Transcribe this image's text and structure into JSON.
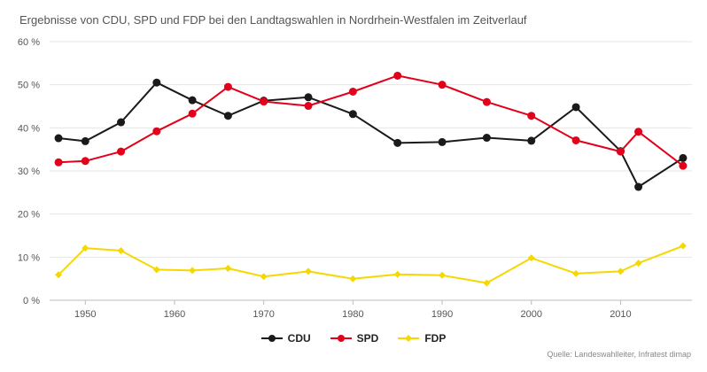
{
  "title": "Ergebnisse von CDU, SPD und FDP bei den Landtagswahlen in Nordrhein-Westfalen im Zeitverlauf",
  "source": "Quelle: Landeswahlleiter, Infratest dimap",
  "chart_data": {
    "type": "line",
    "title": "Ergebnisse von CDU, SPD und FDP bei den Landtagswahlen in Nordrhein-Westfalen im Zeitverlauf",
    "xlabel": "",
    "ylabel": "",
    "x": [
      1947,
      1950,
      1954,
      1958,
      1962,
      1966,
      1970,
      1975,
      1980,
      1985,
      1990,
      1995,
      2000,
      2005,
      2010,
      2012,
      2017
    ],
    "xlim": [
      1946,
      2018
    ],
    "ylim": [
      0,
      60
    ],
    "x_ticks": [
      "1950",
      "1960",
      "1970",
      "1980",
      "1990",
      "2000",
      "2010"
    ],
    "y_ticks": [
      "0 %",
      "10 %",
      "20 %",
      "30 %",
      "40 %",
      "50 %",
      "60 %"
    ],
    "grid": true,
    "legend_position": "bottom",
    "series": [
      {
        "name": "CDU",
        "color": "#1a1a1a",
        "marker": "circle",
        "values": [
          37.6,
          36.9,
          41.3,
          50.5,
          46.4,
          42.8,
          46.3,
          47.1,
          43.2,
          36.5,
          36.7,
          37.7,
          37.0,
          44.8,
          34.6,
          26.3,
          33.0
        ]
      },
      {
        "name": "SPD",
        "color": "#e2001a",
        "marker": "circle",
        "values": [
          32.0,
          32.3,
          34.5,
          39.2,
          43.3,
          49.5,
          46.1,
          45.1,
          48.4,
          52.1,
          50.0,
          46.0,
          42.8,
          37.1,
          34.5,
          39.1,
          31.2
        ]
      },
      {
        "name": "FDP",
        "color": "#f5d800",
        "marker": "diamond",
        "values": [
          5.9,
          12.1,
          11.5,
          7.1,
          6.9,
          7.4,
          5.5,
          6.7,
          4.98,
          6.0,
          5.8,
          4.0,
          9.8,
          6.2,
          6.7,
          8.6,
          12.6
        ]
      }
    ]
  }
}
